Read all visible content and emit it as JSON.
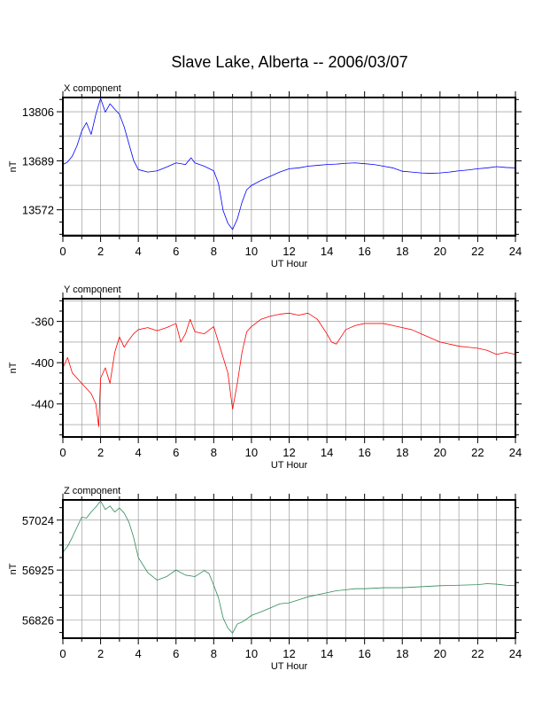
{
  "figure": {
    "title": "Slave Lake, Alberta -- 2006/03/07"
  },
  "chart_data": [
    {
      "type": "line",
      "panel_title": "X component",
      "xlabel": "UT Hour",
      "ylabel": "nT",
      "xlim": [
        0,
        24
      ],
      "x_ticks": [
        0,
        2,
        4,
        6,
        8,
        10,
        12,
        14,
        16,
        18,
        20,
        22,
        24
      ],
      "x_tick_labels": [
        "0",
        "2",
        "4",
        "6",
        "8",
        "10",
        "12",
        "14",
        "16",
        "18",
        "20",
        "22",
        "24"
      ],
      "ylim": [
        13510,
        13840
      ],
      "y_ticks": [
        13572,
        13689,
        13806
      ],
      "y_tick_labels": [
        "13572",
        "13689",
        "13806"
      ],
      "grid": true,
      "color": "#0000ff",
      "series": [
        {
          "x": [
            0,
            0.25,
            0.5,
            0.75,
            1.0,
            1.25,
            1.5,
            1.75,
            2.0,
            2.25,
            2.5,
            2.75,
            3.0,
            3.25,
            3.5,
            3.75,
            4.0,
            4.5,
            5.0,
            5.5,
            6.0,
            6.5,
            6.8,
            7.0,
            7.5,
            8.0,
            8.25,
            8.5,
            8.75,
            9.0,
            9.25,
            9.5,
            9.75,
            10.0,
            10.5,
            11.0,
            11.5,
            12.0,
            12.5,
            13.0,
            13.5,
            14.0,
            14.5,
            15.0,
            15.5,
            16.0,
            16.5,
            17.0,
            17.5,
            18.0,
            18.5,
            19.0,
            19.5,
            20.0,
            20.5,
            21.0,
            21.5,
            22.0,
            22.5,
            23.0,
            23.5,
            24.0
          ],
          "y": [
            13680,
            13686,
            13700,
            13725,
            13760,
            13780,
            13752,
            13800,
            13838,
            13805,
            13825,
            13812,
            13800,
            13770,
            13730,
            13690,
            13668,
            13662,
            13665,
            13674,
            13684,
            13680,
            13696,
            13684,
            13676,
            13665,
            13635,
            13570,
            13540,
            13525,
            13550,
            13590,
            13620,
            13630,
            13642,
            13652,
            13662,
            13670,
            13672,
            13676,
            13678,
            13680,
            13681,
            13683,
            13684,
            13682,
            13680,
            13676,
            13672,
            13664,
            13662,
            13660,
            13659,
            13660,
            13662,
            13665,
            13667,
            13670,
            13672,
            13675,
            13673,
            13672
          ]
        }
      ]
    },
    {
      "type": "line",
      "panel_title": "Y component",
      "xlabel": "UT Hour",
      "ylabel": "nT",
      "xlim": [
        0,
        24
      ],
      "x_ticks": [
        0,
        2,
        4,
        6,
        8,
        10,
        12,
        14,
        16,
        18,
        20,
        22,
        24
      ],
      "x_tick_labels": [
        "0",
        "2",
        "4",
        "6",
        "8",
        "10",
        "12",
        "14",
        "16",
        "18",
        "20",
        "22",
        "24"
      ],
      "ylim": [
        -472,
        -338
      ],
      "y_ticks": [
        -440,
        -400,
        -360
      ],
      "y_tick_labels": [
        "-440",
        "-400",
        "-360"
      ],
      "grid": true,
      "color": "#ff0000",
      "series": [
        {
          "x": [
            0,
            0.25,
            0.5,
            0.75,
            1.0,
            1.25,
            1.5,
            1.75,
            1.9,
            2.0,
            2.25,
            2.5,
            2.75,
            3.0,
            3.25,
            3.5,
            3.75,
            4.0,
            4.5,
            5.0,
            5.5,
            6.0,
            6.25,
            6.5,
            6.75,
            7.0,
            7.5,
            8.0,
            8.25,
            8.5,
            8.75,
            9.0,
            9.25,
            9.5,
            9.75,
            10.0,
            10.5,
            11.0,
            11.5,
            12.0,
            12.5,
            13.0,
            13.5,
            14.0,
            14.25,
            14.5,
            14.75,
            15.0,
            15.5,
            16.0,
            16.5,
            17.0,
            17.5,
            18.0,
            18.5,
            19.0,
            19.5,
            20.0,
            20.5,
            21.0,
            21.5,
            22.0,
            22.5,
            23.0,
            23.5,
            24.0
          ],
          "y": [
            -405,
            -395,
            -410,
            -415,
            -420,
            -425,
            -430,
            -440,
            -462,
            -415,
            -405,
            -420,
            -390,
            -375,
            -385,
            -378,
            -372,
            -368,
            -366,
            -369,
            -366,
            -362,
            -380,
            -372,
            -358,
            -370,
            -372,
            -365,
            -380,
            -395,
            -410,
            -445,
            -420,
            -390,
            -370,
            -365,
            -358,
            -355,
            -353,
            -352,
            -354,
            -352,
            -358,
            -372,
            -380,
            -382,
            -375,
            -368,
            -364,
            -362,
            -362,
            -362,
            -364,
            -366,
            -368,
            -372,
            -376,
            -380,
            -382,
            -384,
            -385,
            -386,
            -388,
            -392,
            -390,
            -392
          ]
        }
      ]
    },
    {
      "type": "line",
      "panel_title": "Z component",
      "xlabel": "UT Hour",
      "ylabel": "nT",
      "xlim": [
        0,
        24
      ],
      "x_ticks": [
        0,
        2,
        4,
        6,
        8,
        10,
        12,
        14,
        16,
        18,
        20,
        22,
        24
      ],
      "x_tick_labels": [
        "0",
        "2",
        "4",
        "6",
        "8",
        "10",
        "12",
        "14",
        "16",
        "18",
        "20",
        "22",
        "24"
      ],
      "ylim": [
        56790,
        57064
      ],
      "y_ticks": [
        56826,
        56925,
        57024
      ],
      "y_tick_labels": [
        "56826",
        "56925",
        "57024"
      ],
      "grid": true,
      "color": "#2e8b57",
      "series": [
        {
          "x": [
            0,
            0.25,
            0.5,
            0.75,
            1.0,
            1.25,
            1.5,
            1.75,
            2.0,
            2.25,
            2.5,
            2.75,
            3.0,
            3.25,
            3.5,
            3.75,
            4.0,
            4.5,
            5.0,
            5.5,
            6.0,
            6.5,
            7.0,
            7.5,
            7.75,
            8.0,
            8.25,
            8.5,
            8.75,
            9.0,
            9.25,
            9.5,
            9.75,
            10.0,
            10.5,
            11.0,
            11.5,
            12.0,
            12.5,
            13.0,
            13.5,
            14.0,
            14.5,
            15.0,
            15.5,
            16.0,
            17.0,
            18.0,
            19.0,
            20.0,
            21.0,
            22.0,
            22.5,
            23.0,
            23.5,
            24.0
          ],
          "y": [
            56960,
            56972,
            56990,
            57010,
            57030,
            57028,
            57040,
            57050,
            57062,
            57045,
            57052,
            57040,
            57048,
            57038,
            57020,
            56990,
            56950,
            56920,
            56905,
            56912,
            56925,
            56915,
            56912,
            56924,
            56918,
            56895,
            56870,
            56830,
            56810,
            56800,
            56818,
            56822,
            56828,
            56835,
            56842,
            56850,
            56858,
            56860,
            56866,
            56872,
            56876,
            56880,
            56884,
            56886,
            56888,
            56888,
            56890,
            56890,
            56892,
            56894,
            56895,
            56896,
            56898,
            56897,
            56895,
            56894
          ]
        }
      ]
    }
  ]
}
